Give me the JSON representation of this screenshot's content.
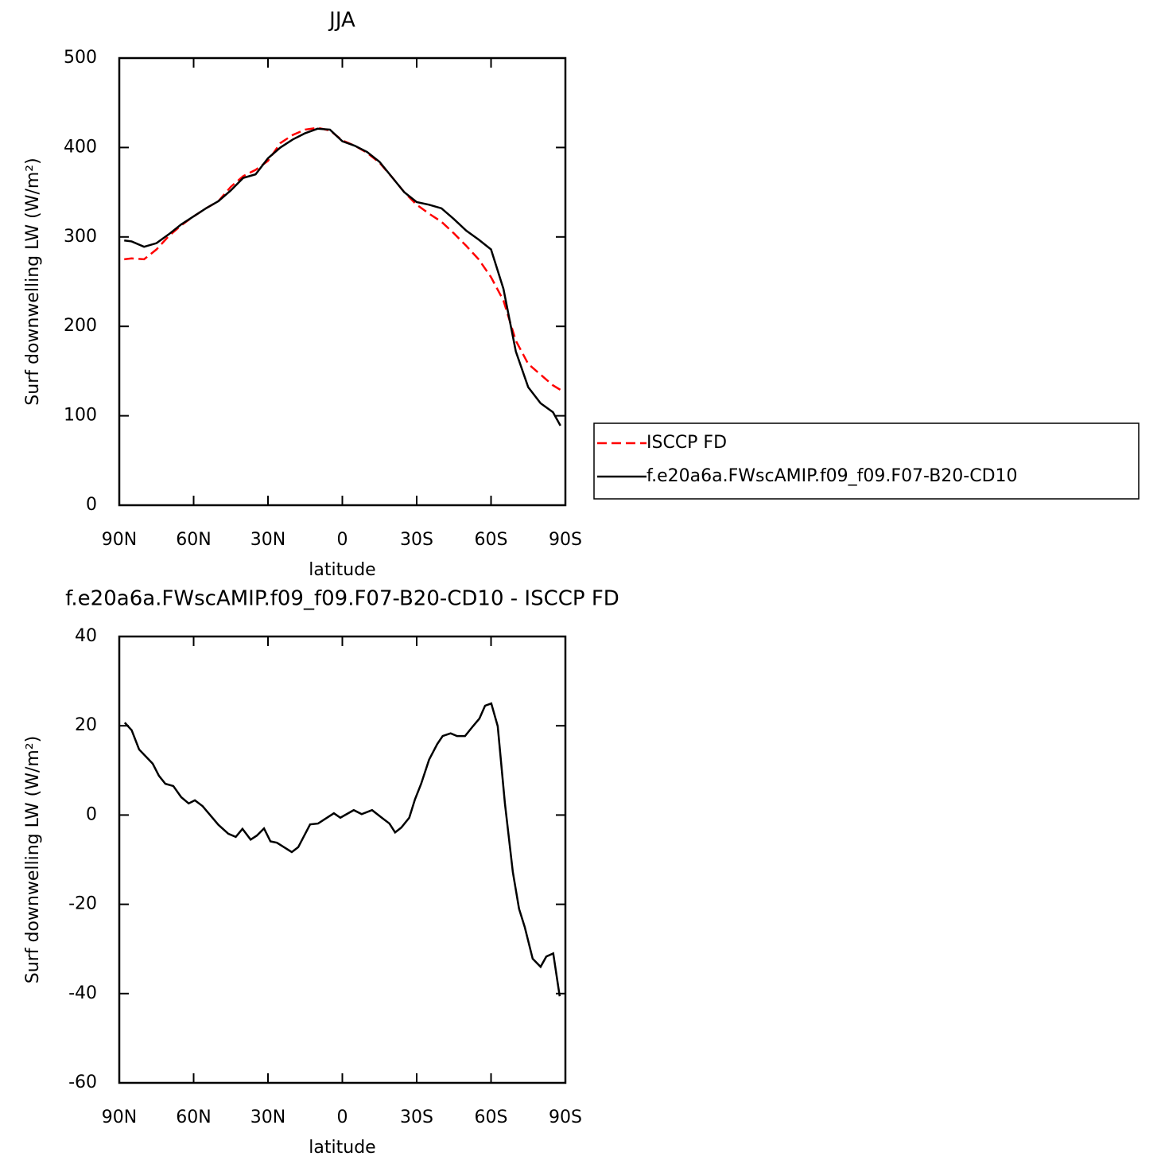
{
  "chart_data": [
    {
      "type": "line",
      "title": "JJA",
      "xlabel": "latitude",
      "ylabel": "Surf downwelling LW (W/m²)",
      "x": [
        88,
        85,
        80,
        75,
        70,
        65,
        60,
        55,
        50,
        45,
        40,
        35,
        30,
        25,
        20,
        15,
        10,
        5,
        0,
        -5,
        -10,
        -15,
        -20,
        -25,
        -30,
        -35,
        -40,
        -45,
        -50,
        -55,
        -60,
        -65,
        -70,
        -75,
        -80,
        -85,
        -88
      ],
      "series": [
        {
          "name": "ISCCP FD",
          "color": "#ff0000",
          "linestyle": "dashed",
          "values": [
            275,
            276,
            275,
            286,
            301,
            313,
            323,
            332,
            340,
            356,
            368,
            375,
            385,
            405,
            414,
            420,
            422,
            419,
            408,
            402,
            394,
            383,
            367,
            350,
            336,
            326,
            317,
            304,
            290,
            275,
            255,
            229,
            184,
            158,
            146,
            134,
            129
          ]
        },
        {
          "name": "f.e20a6a.FWscAMIP.f09_f09.F07-B20-CD10",
          "color": "#000000",
          "linestyle": "solid",
          "values": [
            296,
            295,
            289,
            293,
            303,
            314,
            323,
            332,
            340,
            352,
            366,
            370,
            388,
            400,
            409,
            416,
            421,
            420,
            407,
            402,
            395,
            384,
            367,
            350,
            339,
            336,
            332,
            320,
            307,
            297,
            286,
            242,
            172,
            132,
            114,
            104,
            89
          ]
        }
      ],
      "xlim": [
        90,
        -90
      ],
      "xticks": [
        {
          "value": 90,
          "label": "90N"
        },
        {
          "value": 60,
          "label": "60N"
        },
        {
          "value": 30,
          "label": "30N"
        },
        0,
        {
          "value": -30,
          "label": "30S"
        },
        {
          "value": -60,
          "label": "60S"
        },
        {
          "value": -90,
          "label": "90S"
        }
      ],
      "ylim": [
        0,
        500
      ],
      "yticks": [
        0,
        100,
        200,
        300,
        400,
        500
      ],
      "legend": "outside-right"
    },
    {
      "type": "line",
      "title": "f.e20a6a.FWscAMIP.f09_f09.F07-B20-CD10 - ISCCP FD",
      "xlabel": "latitude",
      "ylabel": "Surf downwelling LW (W/m²)",
      "x": [
        87.8,
        85,
        82,
        76.5,
        74,
        71.4,
        68.2,
        65,
        62,
        59.5,
        56.4,
        50,
        46,
        43,
        40.3,
        37,
        34.5,
        31.6,
        29,
        26.4,
        20.4,
        17.8,
        13,
        9.8,
        3.4,
        0.8,
        -4.6,
        -7.8,
        -12,
        -15.9,
        -19,
        -21.3,
        -23.8,
        -27,
        -29.3,
        -31.8,
        -35,
        -38.3,
        -40.5,
        -43.7,
        -46.3,
        -49.5,
        -52.7,
        -55.3,
        -57.6,
        -60.1,
        -62.7,
        -65.6,
        -68.8,
        -71.3,
        -73.6,
        -76.8,
        -80,
        -82.3,
        -85.1,
        -87.7
      ],
      "values": [
        20.7,
        19,
        14.7,
        11.5,
        8.8,
        7,
        6.5,
        4,
        2.6,
        3.3,
        2,
        -2.2,
        -4.2,
        -4.9,
        -3.1,
        -5.5,
        -4.6,
        -3,
        -5.9,
        -6.2,
        -8.3,
        -7.2,
        -2.1,
        -1.9,
        0.4,
        -0.6,
        1.1,
        0.2,
        1.1,
        -0.6,
        -1.9,
        -3.9,
        -2.8,
        -0.6,
        3.5,
        7,
        12.4,
        15.9,
        17.7,
        18.3,
        17.7,
        17.7,
        19.9,
        21.6,
        24.5,
        25,
        19.9,
        2.6,
        -12.8,
        -21,
        -25.1,
        -32.2,
        -34,
        -31.7,
        -31,
        -40.6
      ],
      "color": "#000000",
      "xlim": [
        90,
        -90
      ],
      "xticks": [
        {
          "value": 90,
          "label": "90N"
        },
        {
          "value": 60,
          "label": "60N"
        },
        {
          "value": 30,
          "label": "30N"
        },
        0,
        {
          "value": -30,
          "label": "30S"
        },
        {
          "value": -60,
          "label": "60S"
        },
        {
          "value": -90,
          "label": "90S"
        }
      ],
      "ylim": [
        -60,
        40
      ],
      "yticks": [
        -60,
        -40,
        -20,
        0,
        20,
        40
      ]
    }
  ]
}
